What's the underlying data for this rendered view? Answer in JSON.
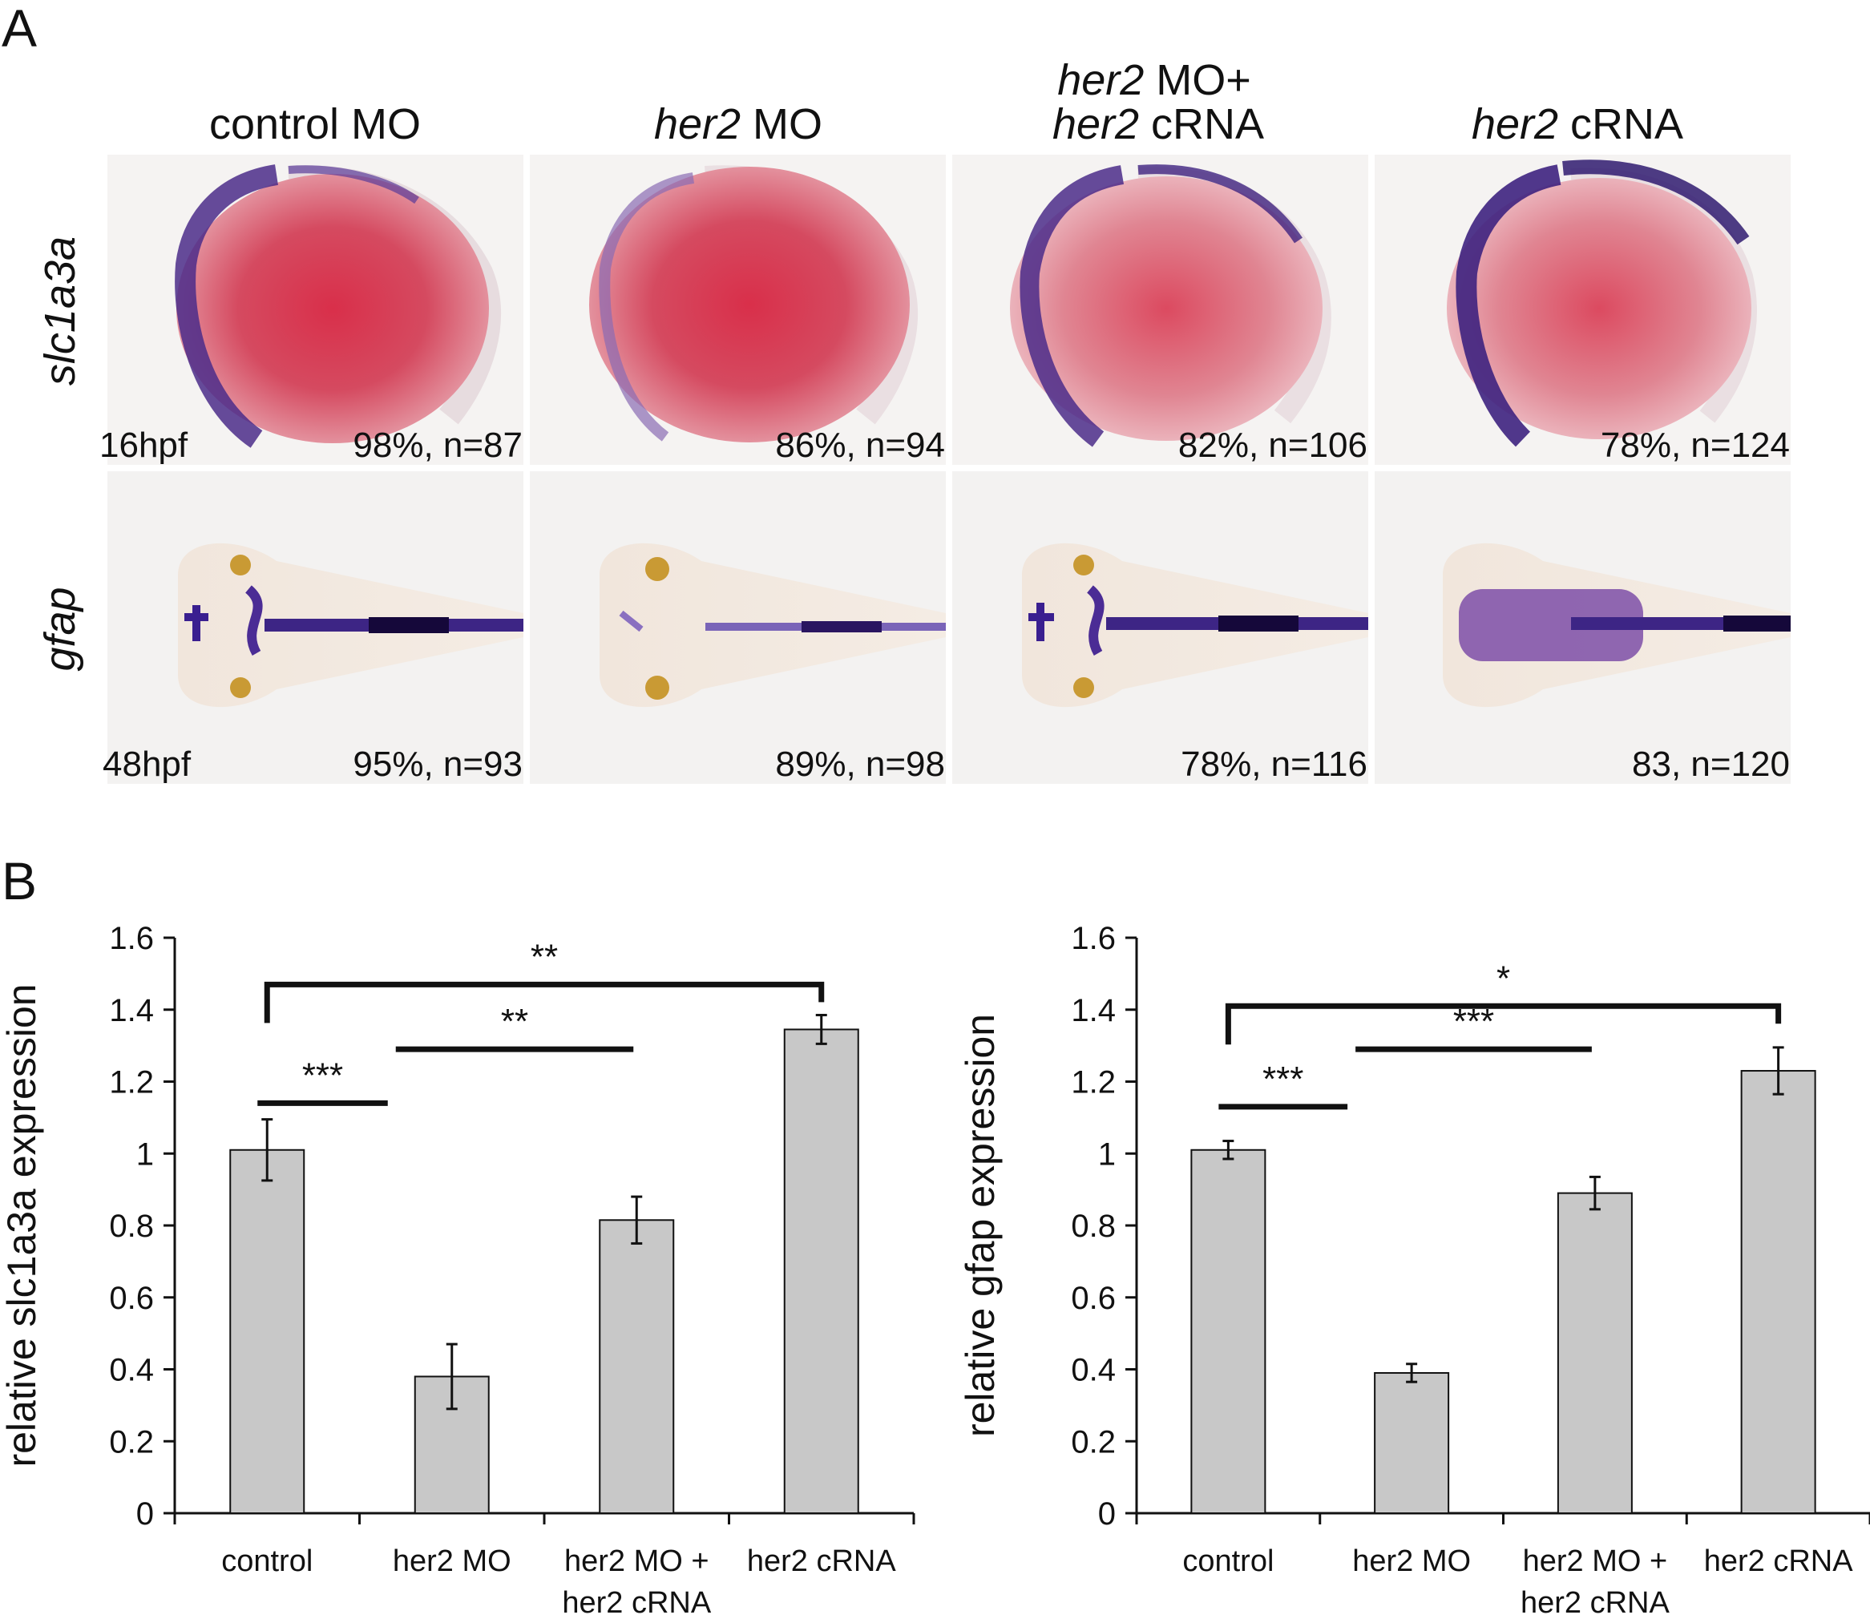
{
  "panel_labels": {
    "a": "A",
    "b": "B"
  },
  "panel_a": {
    "columns": [
      {
        "italic": "",
        "normal": "control MO"
      },
      {
        "italic": "her2",
        "normal": " MO"
      },
      {
        "line1_italic": "her2",
        "line1_normal": " MO+",
        "line2_italic": "her2",
        "line2_normal": " cRNA"
      },
      {
        "italic": "her2",
        "normal": " cRNA"
      }
    ],
    "rows": [
      {
        "label": "slc1a3a",
        "stage": "16hpf",
        "captions": [
          "98%, n=87",
          "86%, n=94",
          "82%, n=106",
          "78%, n=124"
        ]
      },
      {
        "label": "gfap",
        "stage": "48hpf",
        "captions": [
          "95%, n=93",
          "89%, n=98",
          "78%, n=116",
          "83, n=120"
        ]
      }
    ]
  },
  "chart_data": [
    {
      "type": "bar",
      "ylabel": "relative slc1a3a expression",
      "ylim": [
        0,
        1.6
      ],
      "yticks": [
        "0",
        "0.2",
        "0.4",
        "0.6",
        "0.8",
        "1",
        "1.2",
        "1.4",
        "1.6"
      ],
      "categories": [
        [
          "control"
        ],
        [
          "her2 MO"
        ],
        [
          "her2 MO +",
          "her2 cRNA"
        ],
        [
          "her2 cRNA"
        ]
      ],
      "values": [
        1.01,
        0.38,
        0.815,
        1.345
      ],
      "errors": [
        0.085,
        0.09,
        0.065,
        0.04
      ],
      "significance": [
        {
          "from": 0,
          "to": 1,
          "label": "***",
          "level": 1.14,
          "type": "line"
        },
        {
          "from": 1,
          "to": 2,
          "label": "**",
          "level": 1.29,
          "type": "line"
        },
        {
          "from": 0,
          "to": 3,
          "label": "**",
          "level": 1.47,
          "type": "bracket"
        }
      ]
    },
    {
      "type": "bar",
      "ylabel": "relative gfap expression",
      "ylim": [
        0,
        1.6
      ],
      "yticks": [
        "0",
        "0.2",
        "0.4",
        "0.6",
        "0.8",
        "1",
        "1.2",
        "1.4",
        "1.6"
      ],
      "categories": [
        [
          "control"
        ],
        [
          "her2 MO"
        ],
        [
          "her2 MO +",
          "her2 cRNA"
        ],
        [
          "her2 cRNA"
        ]
      ],
      "values": [
        1.01,
        0.39,
        0.89,
        1.23
      ],
      "errors": [
        0.025,
        0.025,
        0.045,
        0.065
      ],
      "significance": [
        {
          "from": 0,
          "to": 1,
          "label": "***",
          "level": 1.13,
          "type": "line"
        },
        {
          "from": 1,
          "to": 2,
          "label": "***",
          "level": 1.29,
          "type": "line"
        },
        {
          "from": 0,
          "to": 3,
          "label": "*",
          "level": 1.41,
          "type": "bracket"
        }
      ]
    }
  ]
}
